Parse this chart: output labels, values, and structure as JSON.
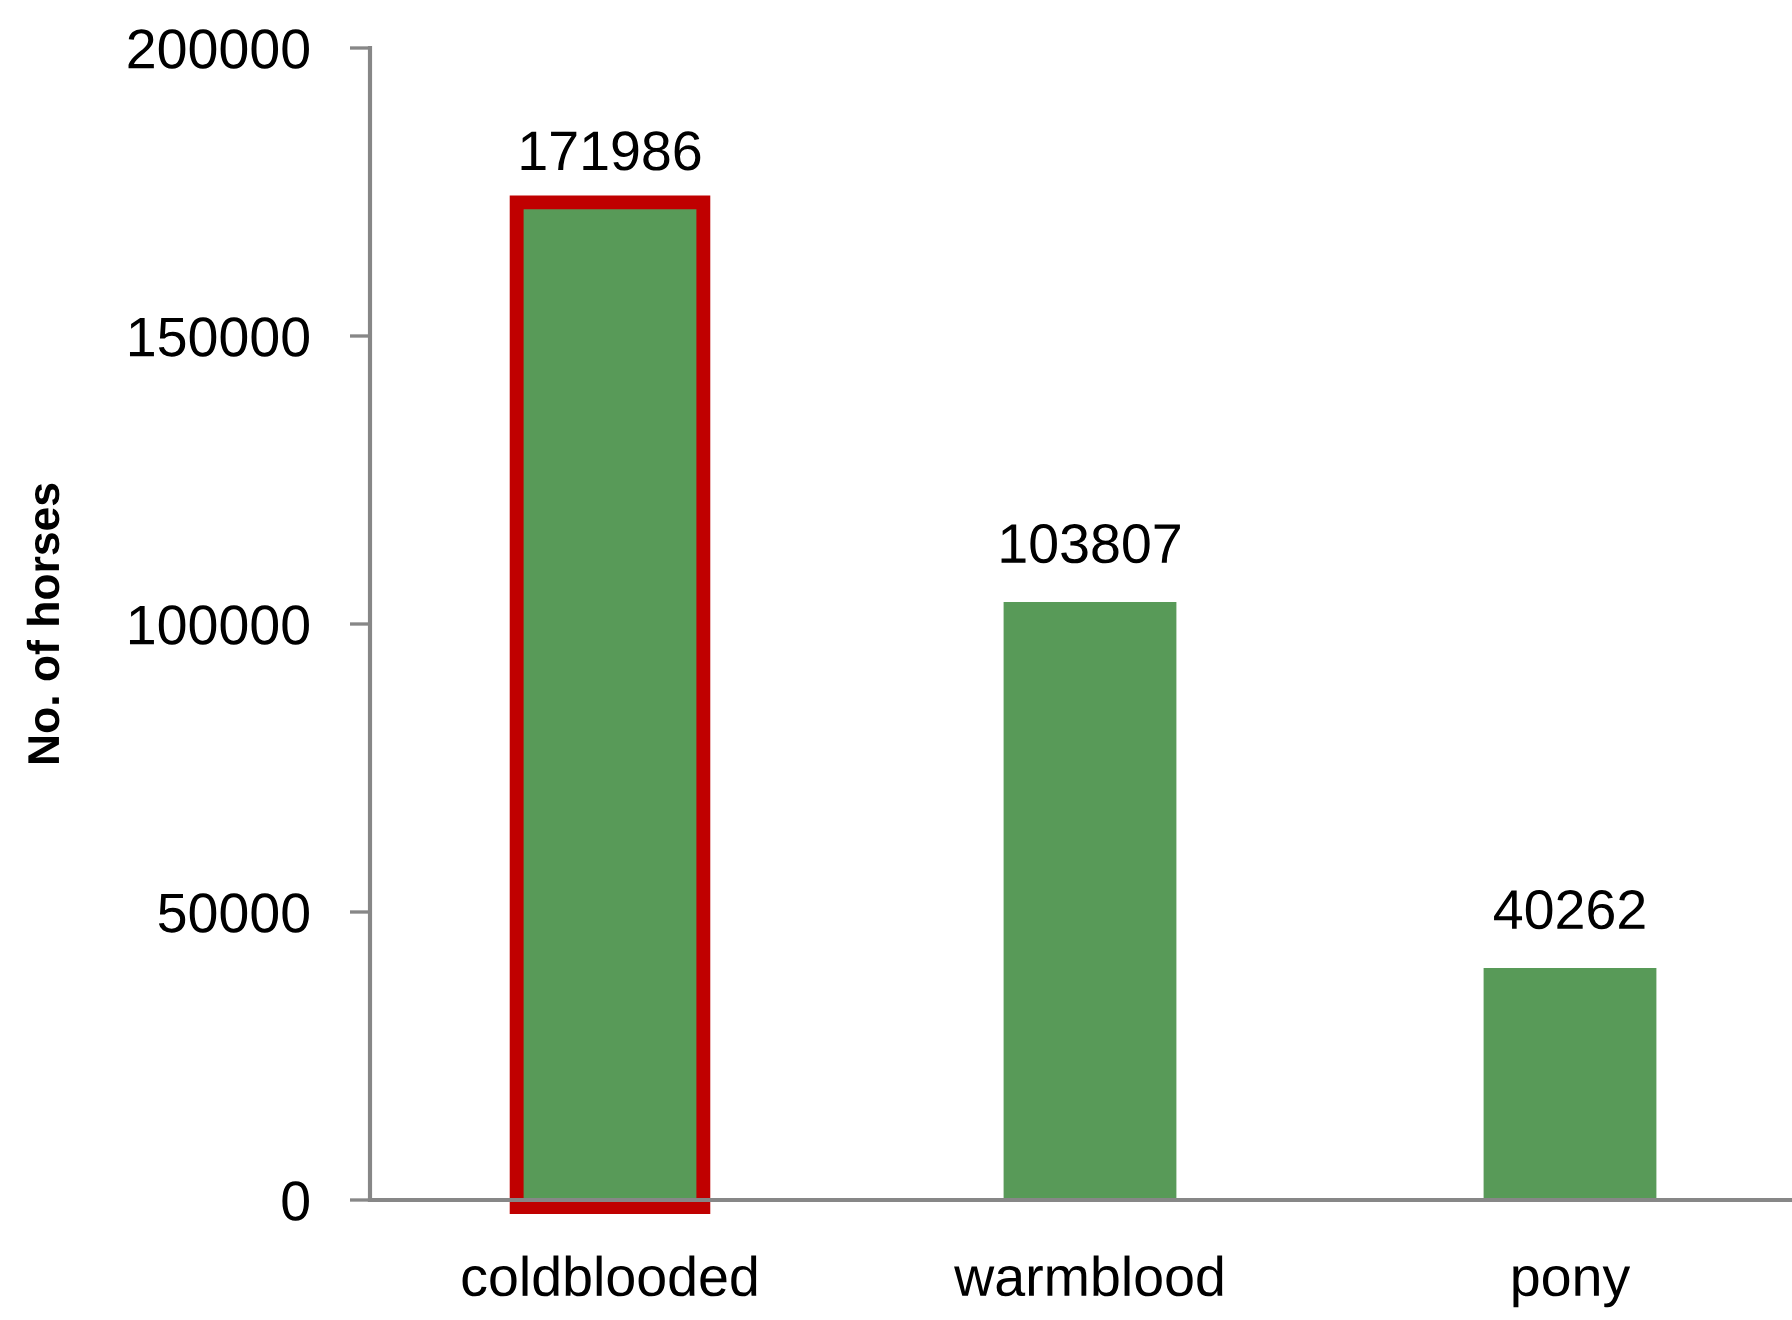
{
  "chart_data": {
    "type": "bar",
    "ylabel": "No. of horses",
    "categories": [
      "coldblooded",
      "warmblood",
      "pony"
    ],
    "values": [
      171986,
      103807,
      40262
    ],
    "color": "#589a58",
    "ylim": [
      0,
      200000
    ],
    "yticks": [
      0,
      50000,
      100000,
      150000,
      200000
    ],
    "data_labels": true
  }
}
